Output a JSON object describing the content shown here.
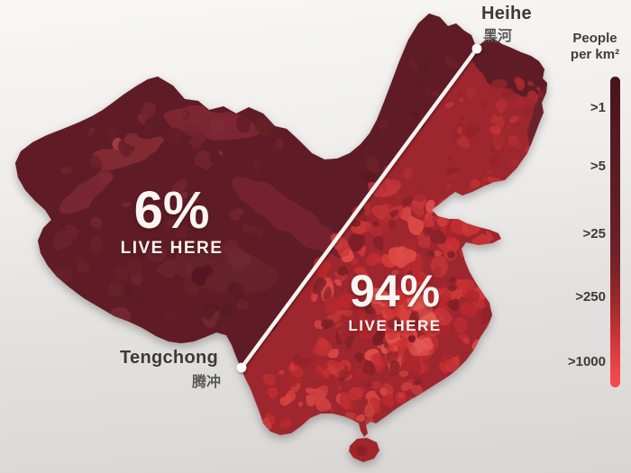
{
  "annotations": {
    "west": {
      "value": "6%",
      "caption": "LIVE HERE"
    },
    "east": {
      "value": "94%",
      "caption": "LIVE HERE"
    }
  },
  "cities": {
    "heihe": {
      "name": "Heihe",
      "name_zh": "黑河"
    },
    "tengchong": {
      "name": "Tengchong",
      "name_zh": "腾冲"
    }
  },
  "legend": {
    "title_line1": "People",
    "title_line2": "per km²",
    "entries": [
      ">1",
      ">5",
      ">25",
      ">250",
      ">1000"
    ]
  },
  "colors": {
    "low_density": "#5e1d25",
    "mid_density": "#9e272e",
    "high_density": "#e04c47",
    "hu_line": "#f7f4f1",
    "background_top": "#f8f7f6",
    "background_bottom": "#d7d6d5"
  }
}
